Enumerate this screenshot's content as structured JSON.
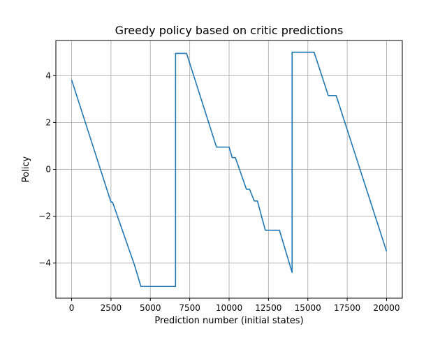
{
  "chart_data": {
    "type": "line",
    "title": "Greedy policy based on critic predictions",
    "xlabel": "Prediction number (initial states)",
    "ylabel": "Policy",
    "xlim": [
      -1000,
      21000
    ],
    "ylim": [
      -5.5,
      5.5
    ],
    "x_ticks": [
      0,
      2500,
      5000,
      7500,
      10000,
      12500,
      15000,
      17500,
      20000
    ],
    "y_ticks": [
      -4,
      -2,
      0,
      2,
      4
    ],
    "grid": true,
    "colors": {
      "line": "#1f77b4",
      "grid": "#b0b0b0",
      "axes": "#000000"
    },
    "series": [
      {
        "x": [
          0,
          2500,
          2600,
          4000,
          4400,
          6600,
          6601,
          7300,
          9200,
          10000,
          10200,
          10400,
          11100,
          11300,
          11600,
          11800,
          12300,
          13200,
          14000,
          14001,
          15400,
          16300,
          16800,
          20000
        ],
        "y": [
          3.82,
          -1.4,
          -1.4,
          -4.1,
          -5.0,
          -5.0,
          4.95,
          4.95,
          0.95,
          0.95,
          0.5,
          0.5,
          -0.85,
          -0.85,
          -1.35,
          -1.35,
          -2.6,
          -2.6,
          -4.4,
          5.0,
          5.0,
          3.15,
          3.15,
          -3.5
        ]
      }
    ]
  }
}
